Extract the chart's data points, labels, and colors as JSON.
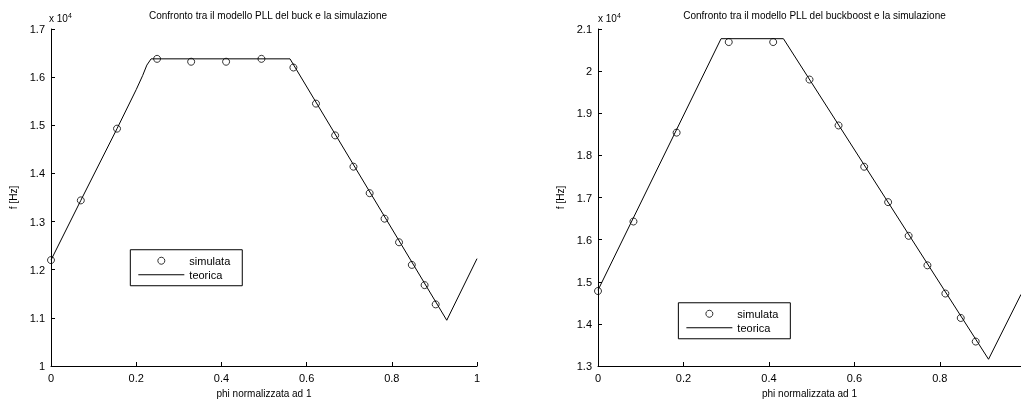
{
  "chart_data": [
    {
      "type": "line",
      "title": "Confronto tra il modello PLL del buck e la simulazione",
      "xlabel": "phi normalizzata ad 1",
      "ylabel": "f [Hz]",
      "annotations": [
        "x 10$^{4}$"
      ],
      "series": [
        {
          "name": "simulata",
          "type": "scatter",
          "marker": "circle",
          "color": "#000000",
          "x": [
            0,
            0.07,
            0.155,
            0.249,
            0.329,
            0.411,
            0.494,
            0.569,
            0.622,
            0.667,
            0.71,
            0.748,
            0.783,
            0.817,
            0.847,
            0.877,
            0.903
          ],
          "values": [
            1.22,
            1.344,
            1.493,
            1.638,
            1.632,
            1.632,
            1.638,
            1.62,
            1.545,
            1.479,
            1.414,
            1.359,
            1.306,
            1.257,
            1.21,
            1.168,
            1.128
          ]
        },
        {
          "name": "teorica",
          "color": "#000000",
          "x": [
            0,
            0.07,
            0.155,
            0.2,
            0.215,
            0.225,
            0.235,
            0.561,
            0.929,
            1
          ],
          "values": [
            1.22,
            1.344,
            1.493,
            1.574,
            1.603,
            1.625,
            1.638,
            1.638,
            1.095,
            1.223
          ]
        }
      ],
      "xlim": [
        0,
        1
      ],
      "xticks": [
        0,
        0.2,
        0.4,
        0.6,
        0.8,
        1
      ],
      "ylim": [
        1,
        1.7
      ],
      "yticks": [
        1,
        1.1,
        1.2,
        1.3,
        1.4,
        1.5,
        1.6,
        1.7
      ],
      "grid": false,
      "legend": "left"
    },
    {
      "type": "line",
      "title": "Confronto tra il modello PLL del buckboost e la simulazione",
      "xlabel": "phi normalizzata ad 1",
      "ylabel": "f [Hz]",
      "annotations": [
        "x 10$^{4}$"
      ],
      "series": [
        {
          "name": "simulata",
          "type": "scatter",
          "marker": "circle",
          "color": "#000000",
          "x": [
            0,
            0.083,
            0.184,
            0.306,
            0.41,
            0.495,
            0.563,
            0.623,
            0.679,
            0.727,
            0.771,
            0.813,
            0.849,
            0.884
          ],
          "values": [
            1.478,
            1.643,
            1.854,
            2.069,
            2.069,
            1.98,
            1.871,
            1.773,
            1.689,
            1.609,
            1.539,
            1.472,
            1.414,
            1.358
          ]
        },
        {
          "name": "teorica",
          "color": "#000000",
          "x": [
            0,
            0.288,
            0.434,
            0.914,
            0.99
          ],
          "values": [
            1.48,
            2.077,
            2.077,
            1.316,
            1.47
          ]
        }
      ],
      "xlim": [
        0,
        0.99
      ],
      "xticks": [
        0,
        0.2,
        0.4,
        0.6,
        0.8
      ],
      "ylim": [
        1.3,
        2.1
      ],
      "yticks": [
        1.3,
        1.4,
        1.5,
        1.6,
        1.7,
        1.8,
        1.9,
        2,
        2.1
      ],
      "grid": false,
      "legend": "bottom left"
    }
  ]
}
